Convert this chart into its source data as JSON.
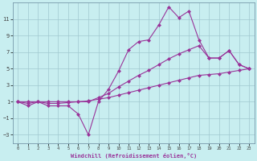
{
  "xlabel": "Windchill (Refroidissement éolien,°C)",
  "bg_color": "#c8eef0",
  "line_color": "#993399",
  "grid_color": "#a0c8d0",
  "x_values": [
    0,
    1,
    2,
    3,
    4,
    5,
    6,
    7,
    8,
    9,
    10,
    11,
    12,
    13,
    14,
    15,
    16,
    17,
    18,
    19,
    20,
    21,
    22,
    23
  ],
  "y_main": [
    1,
    0.5,
    1,
    0.5,
    0.5,
    0.5,
    -0.5,
    -3,
    1,
    2.5,
    4.7,
    7.3,
    8.3,
    8.5,
    10.3,
    12.5,
    11.2,
    12.0,
    8.5,
    6.3,
    6.3,
    7.2,
    5.5,
    5.0
  ],
  "y_upper": [
    1,
    1,
    1,
    1,
    1,
    1,
    1,
    1,
    1.5,
    2.0,
    2.8,
    3.5,
    4.2,
    4.8,
    5.5,
    6.2,
    6.8,
    7.3,
    7.8,
    6.3,
    6.3,
    7.2,
    5.5,
    5.0
  ],
  "y_lower": [
    1,
    0.8,
    1,
    0.8,
    0.8,
    0.9,
    1.0,
    1.1,
    1.3,
    1.5,
    1.8,
    2.1,
    2.4,
    2.7,
    3.0,
    3.3,
    3.6,
    3.9,
    4.2,
    4.3,
    4.4,
    4.6,
    4.8,
    5.0
  ],
  "ylim": [
    -4,
    13
  ],
  "xlim": [
    -0.5,
    23.5
  ],
  "yticks": [
    -3,
    -1,
    1,
    3,
    5,
    7,
    9,
    11
  ],
  "xticks": [
    0,
    1,
    2,
    3,
    4,
    5,
    6,
    7,
    8,
    9,
    10,
    11,
    12,
    13,
    14,
    15,
    16,
    17,
    18,
    19,
    20,
    21,
    22,
    23
  ]
}
